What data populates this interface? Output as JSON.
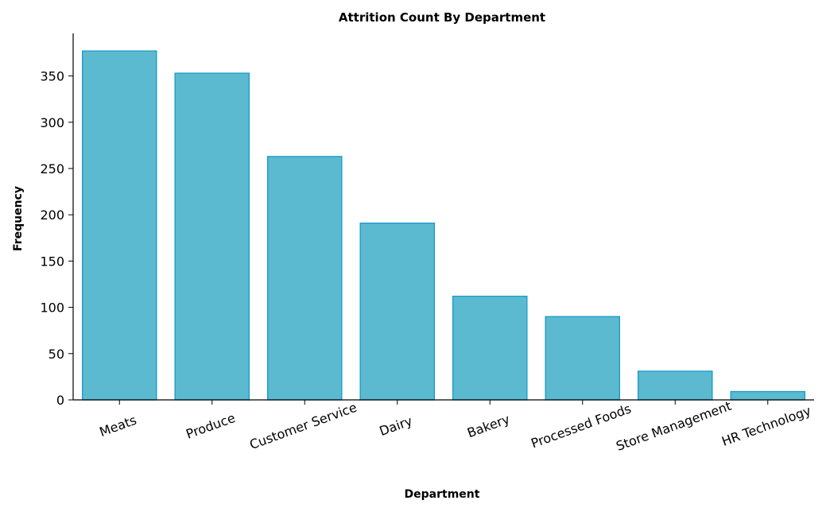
{
  "chart_data": {
    "type": "bar",
    "title": "Attrition Count By Department",
    "xlabel": "Department",
    "ylabel": "Frequency",
    "categories": [
      "Meats",
      "Produce",
      "Customer Service",
      "Dairy",
      "Bakery",
      "Processed Foods",
      "Store Management",
      "HR Technology"
    ],
    "values": [
      377,
      353,
      263,
      191,
      112,
      90,
      31,
      9
    ],
    "ylim": [
      0,
      396
    ],
    "yticks": [
      0,
      50,
      100,
      150,
      200,
      250,
      300,
      350
    ],
    "grid": false,
    "bar_fill": "#5bbad0",
    "bar_edge": "#1a9ac8"
  }
}
